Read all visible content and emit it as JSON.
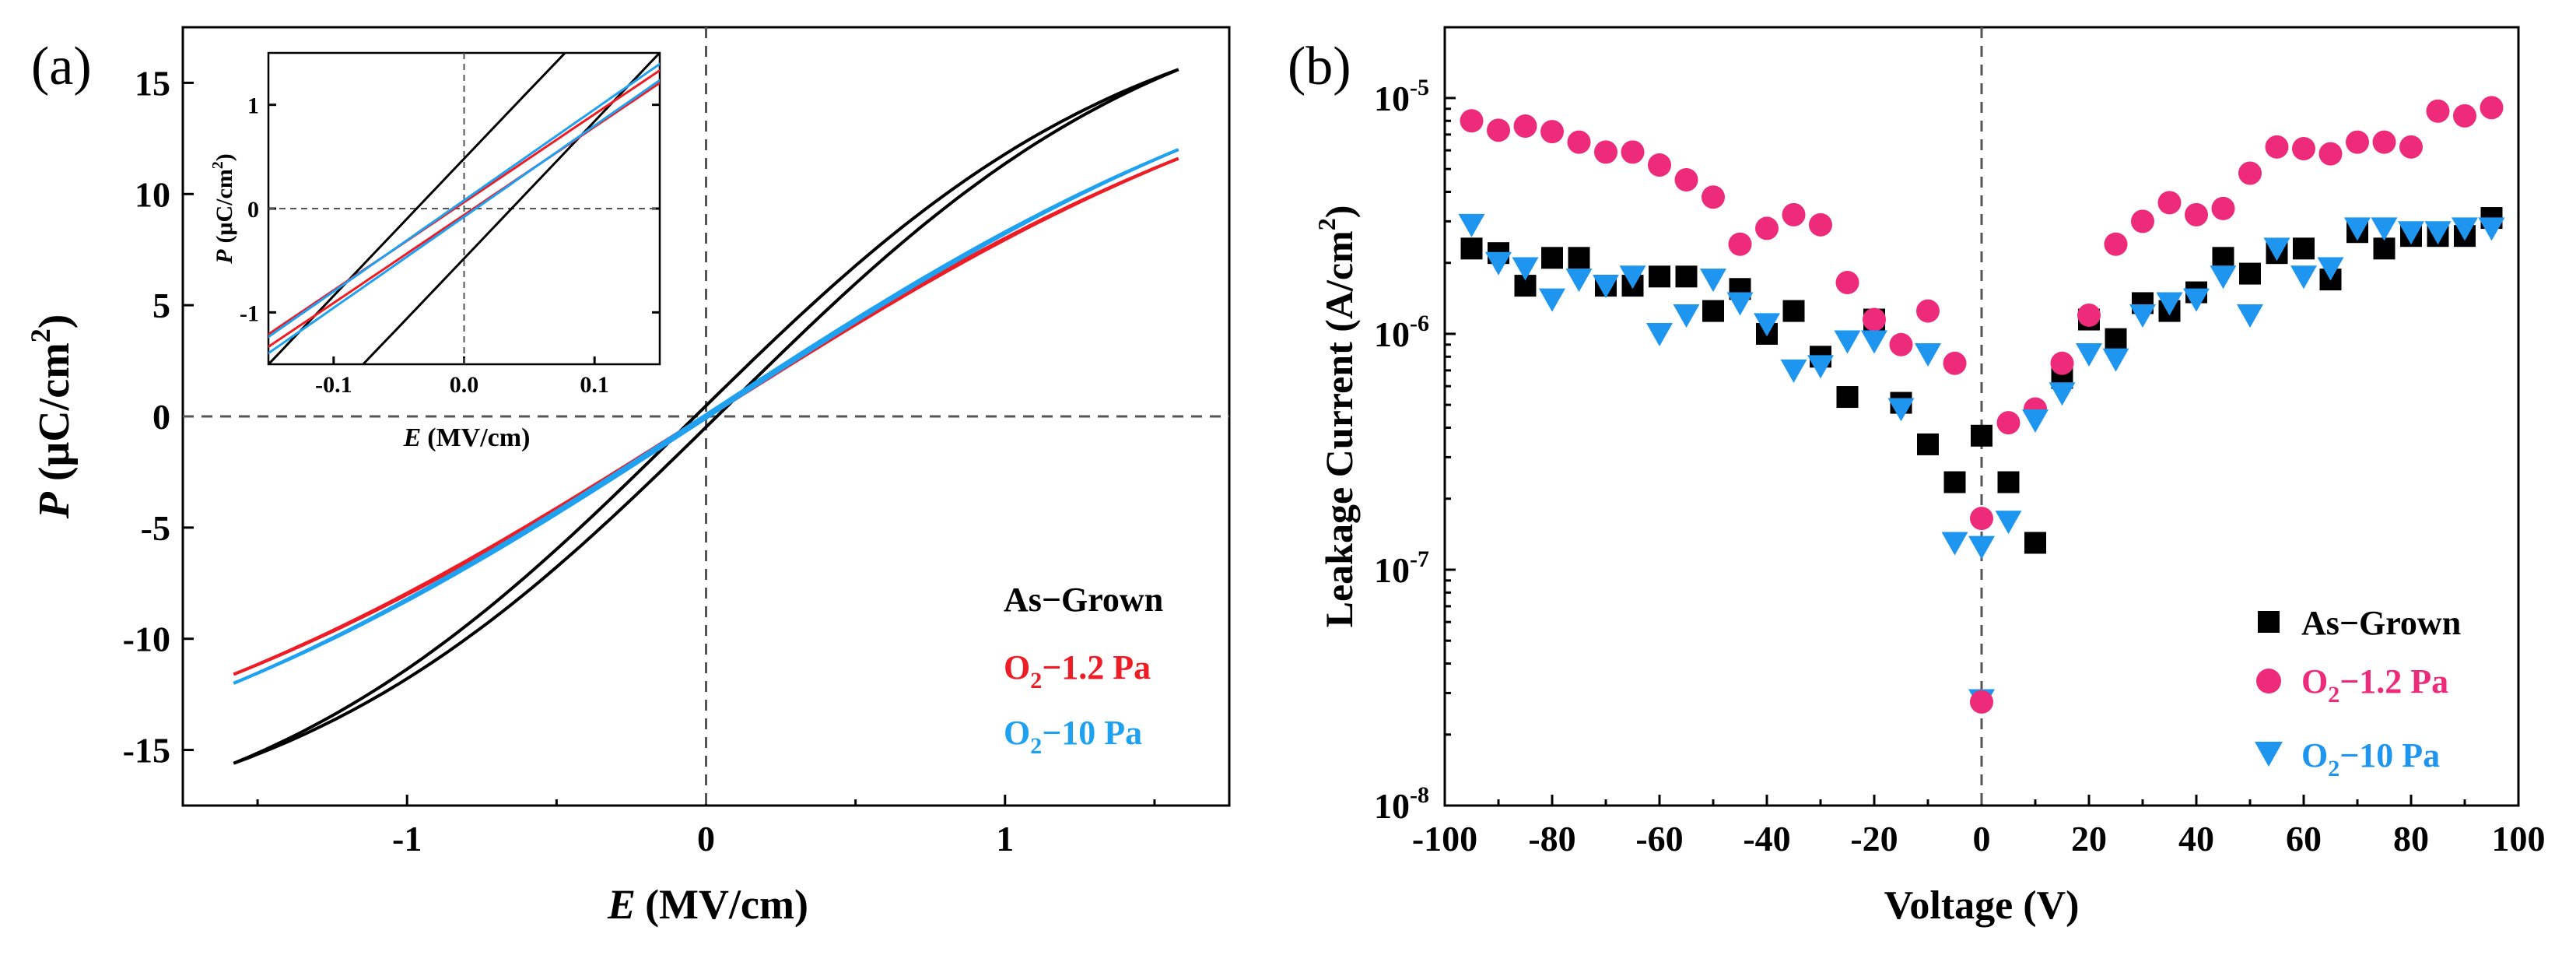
{
  "chart_data": [
    {
      "panel": "(a)",
      "type": "line",
      "xlabel_var": "E",
      "xlabel_unit": "(MV/cm)",
      "ylabel_var": "P",
      "ylabel_unit": "(μC/cm",
      "ylabel_sup": "2",
      "ylabel_close": ")",
      "xlim": [
        -1.75,
        1.75
      ],
      "ylim": [
        -17.5,
        17.5
      ],
      "xticks": [
        {
          "v": -1,
          "label": "-1"
        },
        {
          "v": 0,
          "label": "0"
        },
        {
          "v": 1,
          "label": "1"
        }
      ],
      "yticks": [
        {
          "v": -15,
          "label": "-15"
        },
        {
          "v": -10,
          "label": "-10"
        },
        {
          "v": -5,
          "label": "-5"
        },
        {
          "v": 0,
          "label": "0"
        },
        {
          "v": 5,
          "label": "5"
        },
        {
          "v": 10,
          "label": "10"
        },
        {
          "v": 15,
          "label": "15"
        }
      ],
      "series": [
        {
          "name": "As-Grown",
          "color": "#000000",
          "Emax": 1.58,
          "Pmax": 15.6,
          "Ec": 0.06,
          "k": 0.66
        },
        {
          "name": "O2-1.2 Pa",
          "color": "#ee1c24",
          "Emax": 1.58,
          "Pmax": 11.6,
          "Ec": 0.02,
          "k": 0.44
        },
        {
          "name": "O2-10 Pa",
          "color": "#1ea1f0",
          "Emax": 1.58,
          "Pmax": 12.0,
          "Ec": 0.025,
          "k": 0.44
        }
      ],
      "legend": [
        {
          "main": "As−Grown",
          "sub": "",
          "rest": "",
          "color": "#000000"
        },
        {
          "main": "O",
          "sub": "2",
          "rest": "−1.2 Pa",
          "color": "#ee1c24"
        },
        {
          "main": "O",
          "sub": "2",
          "rest": "−10 Pa",
          "color": "#1ea1f0"
        }
      ],
      "inset": {
        "xlim": [
          -0.15,
          0.15
        ],
        "ylim": [
          -1.5,
          1.5
        ],
        "xticks": [
          {
            "v": -0.1,
            "label": "-0.1"
          },
          {
            "v": 0,
            "label": "0.0"
          },
          {
            "v": 0.1,
            "label": "0.1"
          }
        ],
        "yticks": [
          {
            "v": -1,
            "label": "-1"
          },
          {
            "v": 0,
            "label": "0"
          },
          {
            "v": 1,
            "label": "1"
          }
        ],
        "xlabel_var": "E",
        "xlabel_unit": "(MV/cm)",
        "ylabel_var": "P",
        "ylabel_unit": "(μC/cm",
        "ylabel_sup": "2",
        "ylabel_close": ")"
      }
    },
    {
      "panel": "(b)",
      "type": "scatter",
      "xlabel": "Voltage (V)",
      "ylabel_main": "Leakage Current (A/cm",
      "ylabel_sup": "2",
      "ylabel_close": ")",
      "xlim": [
        -100,
        100
      ],
      "ylim_log10": [
        -8,
        -4.7
      ],
      "xticks": [
        {
          "v": -100,
          "label": "-100"
        },
        {
          "v": -80,
          "label": "-80"
        },
        {
          "v": -60,
          "label": "-60"
        },
        {
          "v": -40,
          "label": "-40"
        },
        {
          "v": -20,
          "label": "-20"
        },
        {
          "v": 0,
          "label": "0"
        },
        {
          "v": 20,
          "label": "20"
        },
        {
          "v": 40,
          "label": "40"
        },
        {
          "v": 60,
          "label": "60"
        },
        {
          "v": 80,
          "label": "80"
        },
        {
          "v": 100,
          "label": "100"
        }
      ],
      "yticks": [
        {
          "exp": -8,
          "base": "10",
          "sup": "-8"
        },
        {
          "exp": -7,
          "base": "10",
          "sup": "-7"
        },
        {
          "exp": -6,
          "base": "10",
          "sup": "-6"
        },
        {
          "exp": -5,
          "base": "10",
          "sup": "-5"
        }
      ],
      "x": [
        -95,
        -90,
        -85,
        -80,
        -75,
        -70,
        -65,
        -60,
        -55,
        -50,
        -45,
        -40,
        -35,
        -30,
        -25,
        -20,
        -15,
        -10,
        -5,
        0,
        5,
        10,
        15,
        20,
        25,
        30,
        35,
        40,
        45,
        50,
        55,
        60,
        65,
        70,
        75,
        80,
        85,
        90,
        95
      ],
      "series": [
        {
          "name": "As-Grown",
          "marker": "square",
          "color": "#000000",
          "values": [
            2.3e-06,
            2.2e-06,
            1.6e-06,
            2.1e-06,
            2.1e-06,
            1.6e-06,
            1.6e-06,
            1.75e-06,
            1.75e-06,
            1.25e-06,
            1.55e-06,
            1e-06,
            1.25e-06,
            8e-07,
            5.4e-07,
            1.15e-06,
            5.1e-07,
            3.4e-07,
            2.35e-07,
            3.7e-07,
            2.35e-07,
            1.3e-07,
            6.5e-07,
            1.15e-06,
            9.5e-07,
            1.35e-06,
            1.25e-06,
            1.5e-06,
            2.1e-06,
            1.8e-06,
            2.2e-06,
            2.3e-06,
            1.7e-06,
            2.7e-06,
            2.3e-06,
            2.6e-06,
            2.6e-06,
            2.6e-06,
            3.1e-06
          ]
        },
        {
          "name": "O2-1.2 Pa",
          "marker": "circle",
          "color": "#ee2a7b",
          "values": [
            8e-06,
            7.3e-06,
            7.6e-06,
            7.2e-06,
            6.5e-06,
            5.9e-06,
            5.9e-06,
            5.2e-06,
            4.5e-06,
            3.8e-06,
            2.4e-06,
            2.8e-06,
            3.2e-06,
            2.9e-06,
            1.65e-06,
            1.15e-06,
            9e-07,
            1.25e-06,
            7.5e-07,
            1.65e-07,
            4.2e-07,
            4.8e-07,
            7.5e-07,
            1.2e-06,
            2.4e-06,
            3e-06,
            3.6e-06,
            3.2e-06,
            3.4e-06,
            4.8e-06,
            6.2e-06,
            6.1e-06,
            5.8e-06,
            6.5e-06,
            6.5e-06,
            6.2e-06,
            8.8e-06,
            8.4e-06,
            9.1e-06
          ]
        },
        {
          "name": "O2-10 Pa",
          "marker": "triangle-down",
          "color": "#1e96f0",
          "values": [
            2.9e-06,
            2e-06,
            1.9e-06,
            1.4e-06,
            1.7e-06,
            1.6e-06,
            1.75e-06,
            1e-06,
            1.2e-06,
            1.7e-06,
            1.35e-06,
            1.1e-06,
            7e-07,
            7.3e-07,
            9.3e-07,
            9.3e-07,
            4.8e-07,
            8.2e-07,
            1.3e-07,
            1.25e-07,
            1.6e-07,
            4.3e-07,
            5.6e-07,
            8.2e-07,
            7.8e-07,
            1.2e-06,
            1.35e-06,
            1.4e-06,
            1.75e-06,
            1.2e-06,
            2.3e-06,
            1.75e-06,
            1.9e-06,
            2.8e-06,
            2.8e-06,
            2.7e-06,
            2.7e-06,
            2.8e-06,
            2.8e-06
          ]
        }
      ],
      "extra_points": [
        {
          "x": 0,
          "value": 2.8e-08,
          "series": "O2-10 Pa"
        },
        {
          "x": 0,
          "value": 2.75e-08,
          "series": "O2-1.2 Pa"
        }
      ],
      "legend": [
        {
          "main": "As−Grown",
          "sub": "",
          "rest": "",
          "color": "#000000",
          "marker": "square"
        },
        {
          "main": "O",
          "sub": "2",
          "rest": "−1.2 Pa",
          "color": "#ee2a7b",
          "marker": "circle"
        },
        {
          "main": "O",
          "sub": "2",
          "rest": "−10 Pa",
          "color": "#1e96f0",
          "marker": "triangle-down"
        }
      ]
    }
  ]
}
